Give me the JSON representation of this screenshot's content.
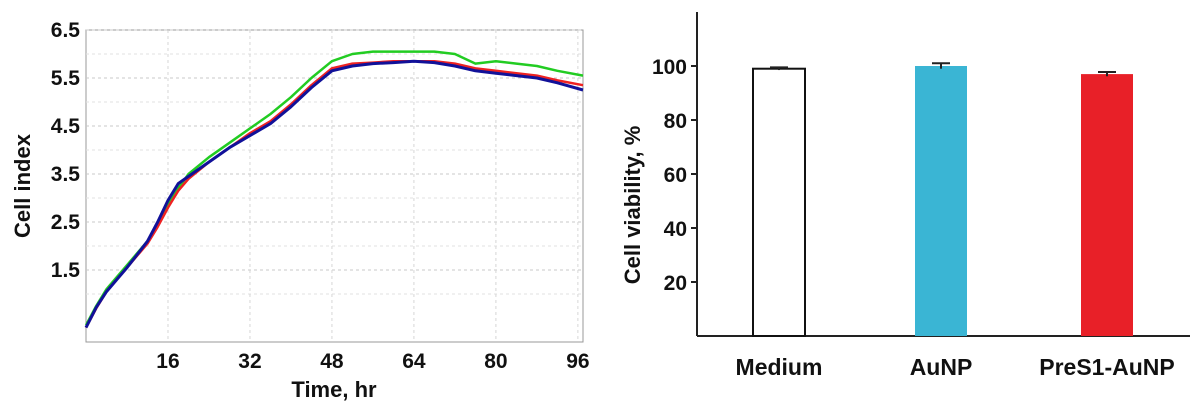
{
  "chart_data": [
    {
      "type": "line",
      "title": "",
      "xlabel": "Time, hr",
      "ylabel": "Cell index",
      "xlim": [
        0,
        97
      ],
      "ylim": [
        0,
        6.5
      ],
      "x_ticks": [
        16,
        32,
        48,
        64,
        80,
        96
      ],
      "y_ticks": [
        1.5,
        2.5,
        3.5,
        4.5,
        5.5,
        6.5
      ],
      "grid": true,
      "colors": [
        "#22cc22",
        "#ee2222",
        "#111199"
      ],
      "series": [
        {
          "x": [
            0,
            2,
            4,
            6,
            8,
            10,
            12,
            14,
            16,
            18,
            20,
            24,
            28,
            32,
            36,
            40,
            44,
            48,
            52,
            56,
            60,
            64,
            68,
            72,
            76,
            80,
            84,
            88,
            92,
            97
          ],
          "y": [
            0.35,
            0.75,
            1.1,
            1.35,
            1.6,
            1.85,
            2.1,
            2.45,
            2.85,
            3.2,
            3.5,
            3.85,
            4.15,
            4.45,
            4.75,
            5.1,
            5.5,
            5.85,
            6.0,
            6.05,
            6.05,
            6.05,
            6.05,
            6.0,
            5.8,
            5.85,
            5.8,
            5.75,
            5.65,
            5.55
          ]
        },
        {
          "x": [
            0,
            2,
            4,
            6,
            8,
            10,
            12,
            14,
            16,
            18,
            20,
            24,
            28,
            32,
            36,
            40,
            44,
            48,
            52,
            56,
            60,
            64,
            68,
            72,
            76,
            80,
            84,
            88,
            92,
            97
          ],
          "y": [
            0.3,
            0.7,
            1.05,
            1.3,
            1.55,
            1.8,
            2.05,
            2.4,
            2.8,
            3.15,
            3.4,
            3.75,
            4.05,
            4.35,
            4.6,
            4.95,
            5.35,
            5.7,
            5.8,
            5.82,
            5.85,
            5.85,
            5.85,
            5.8,
            5.7,
            5.65,
            5.6,
            5.55,
            5.45,
            5.35
          ]
        },
        {
          "x": [
            0,
            2,
            4,
            6,
            8,
            10,
            12,
            14,
            16,
            18,
            20,
            24,
            28,
            32,
            36,
            40,
            44,
            48,
            52,
            56,
            60,
            64,
            68,
            72,
            76,
            80,
            84,
            88,
            92,
            97
          ],
          "y": [
            0.3,
            0.72,
            1.05,
            1.3,
            1.55,
            1.82,
            2.1,
            2.5,
            2.95,
            3.3,
            3.45,
            3.75,
            4.05,
            4.3,
            4.55,
            4.9,
            5.3,
            5.65,
            5.75,
            5.8,
            5.82,
            5.85,
            5.82,
            5.75,
            5.65,
            5.6,
            5.55,
            5.5,
            5.4,
            5.25
          ]
        }
      ]
    },
    {
      "type": "bar",
      "title": "",
      "xlabel": "",
      "ylabel": "Cell viability, %",
      "ylim": [
        0,
        120
      ],
      "y_ticks": [
        20,
        40,
        60,
        80,
        100
      ],
      "grid": false,
      "categories": [
        "Medium",
        "AuNP",
        "PreS1-AuNP"
      ],
      "values": [
        99,
        100,
        97
      ],
      "errors": [
        0.5,
        1,
        0.8
      ],
      "colors": [
        "#ffffff",
        "#3ab5d4",
        "#e82028"
      ]
    }
  ]
}
